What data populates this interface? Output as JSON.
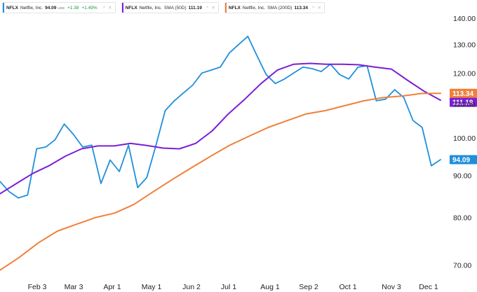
{
  "legend": {
    "price": {
      "symbol": "NFLX",
      "name": "Netflix, Inc.",
      "value": "94.09",
      "unit": "USD",
      "change": "+1.38",
      "change_pct": "+1.49%",
      "color": "#1f8fdb"
    },
    "sma50": {
      "symbol": "NFLX",
      "name": "Netflix, Inc.",
      "indicator": "SMA (50D)",
      "value": "111.19",
      "color": "#7b1fd6"
    },
    "sma200": {
      "symbol": "NFLX",
      "name": "Netflix, Inc.",
      "indicator": "SMA (200D)",
      "value": "113.34",
      "color": "#f0803c"
    }
  },
  "chart_data": {
    "type": "line",
    "title": "",
    "xlabel": "",
    "ylabel": "",
    "x_ticks": [
      "Feb 3",
      "Mar 3",
      "Apr 1",
      "May 1",
      "Jun 2",
      "Jul 1",
      "Aug 1",
      "Sep 2",
      "Oct 1",
      "Nov 3",
      "Dec 1"
    ],
    "y_ticks": [
      70.0,
      80.0,
      90.0,
      100.0,
      110.0,
      120.0,
      130.0,
      140.0
    ],
    "ylim": [
      67.5,
      143.3
    ],
    "y_scale": "log",
    "grid": false,
    "x_period": "January to early December (about 48 weeks), weekly values",
    "price_tags": [
      {
        "series": "NFLX Netflix, Inc. SMA (200D)",
        "value": 113.34,
        "label": "113.34",
        "color": "#f0803c"
      },
      {
        "series": "NFLX Netflix, Inc. SMA (50D)",
        "value": 111.19,
        "label": "111.19",
        "color": "#7b1fd6"
      },
      {
        "series": "NFLX Netflix, Inc.",
        "value": 94.09,
        "label": "94.09",
        "color": "#1f8fdb"
      }
    ],
    "series": [
      {
        "name": "NFLX Netflix, Inc.",
        "color": "#1f8fdb",
        "values": [
          88.5,
          86.0,
          84.5,
          85.2,
          97.0,
          97.5,
          99.5,
          104.0,
          101.0,
          97.5,
          98.0,
          88.0,
          94.0,
          91.0,
          98.0,
          87.0,
          89.5,
          98.0,
          108.0,
          111.0,
          113.5,
          116.0,
          120.0,
          121.0,
          122.0,
          127.0,
          130.0,
          133.0,
          126.0,
          119.5,
          116.5,
          118.0,
          120.0,
          122.0,
          121.5,
          120.5,
          123.0,
          119.5,
          118.0,
          122.0,
          122.5,
          111.0,
          111.5,
          114.5,
          112.0,
          105.0,
          103.0,
          92.5,
          94.09
        ]
      },
      {
        "name": "NFLX Netflix, Inc. SMA (50D)",
        "color": "#7b1fd6",
        "values": [
          85.5,
          88.0,
          90.5,
          92.5,
          95.0,
          97.0,
          97.8,
          97.8,
          98.5,
          97.9,
          97.2,
          97.0,
          98.5,
          102.0,
          107.0,
          111.5,
          116.5,
          121.0,
          123.0,
          123.3,
          123.0,
          123.0,
          122.8,
          122.0,
          121.3,
          117.5,
          114.0,
          111.19
        ]
      },
      {
        "name": "NFLX Netflix, Inc. SMA (200D)",
        "color": "#f0803c",
        "values": [
          69.0,
          71.5,
          74.5,
          77.0,
          78.5,
          80.0,
          81.0,
          83.0,
          86.0,
          89.0,
          92.0,
          95.0,
          98.0,
          100.5,
          103.0,
          105.0,
          107.0,
          108.0,
          109.5,
          111.0,
          112.0,
          112.5,
          113.3,
          113.34
        ]
      }
    ]
  }
}
